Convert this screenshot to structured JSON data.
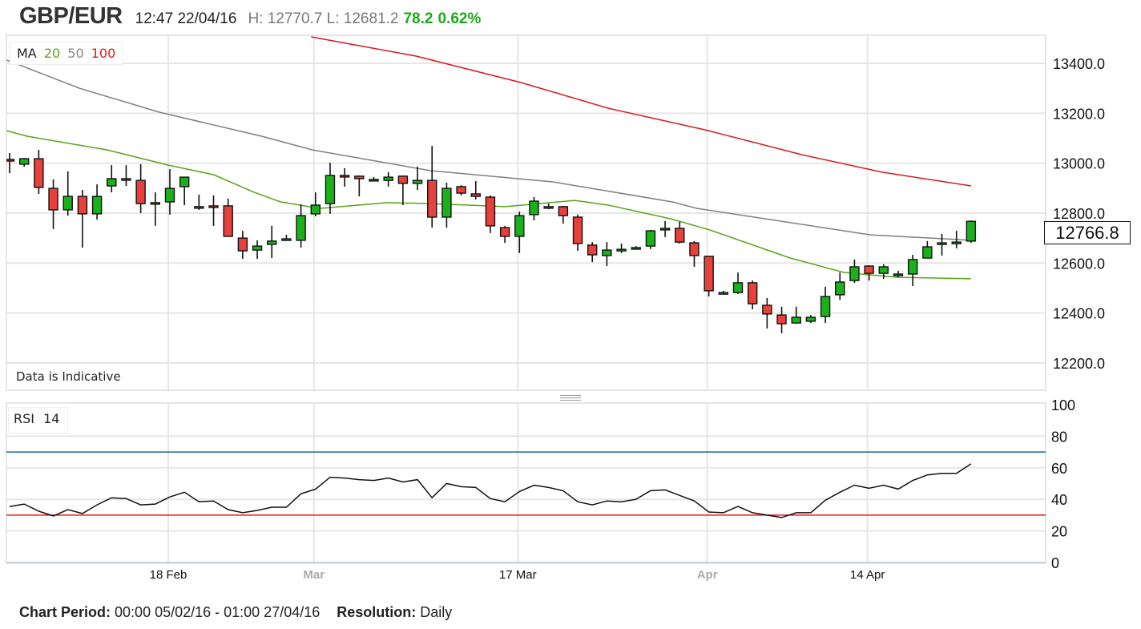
{
  "header": {
    "symbol": "GBP/EUR",
    "time": "12:47 22/04/16",
    "high_low": "H: 12770.7 L: 12681.2",
    "change": "78.2",
    "change_pct": "0.62%"
  },
  "ma_legend": {
    "label": "MA",
    "periods": [
      "20",
      "50",
      "100"
    ]
  },
  "rsi_legend": {
    "label": "RSI",
    "period": "14"
  },
  "indicative_note": "Data is Indicative",
  "current_price": "12766.8",
  "footer": {
    "period_label": "Chart Period:",
    "period_value": "00:00 05/02/16 - 01:00 27/04/16",
    "resolution_label": "Resolution:",
    "resolution_value": "Daily"
  },
  "colors": {
    "up": "#19b21a",
    "down": "#e8403a",
    "ma20": "#5aa31a",
    "ma50": "#7f7f7f",
    "ma100": "#d9191c",
    "rsi70": "#1a6a9a",
    "rsi30": "#e21a1a",
    "change": "#1aaa1a"
  },
  "chart_data": [
    {
      "type": "candlestick",
      "title": "GBP/EUR",
      "y_ticks": [
        "13400.0",
        "13200.0",
        "13000.0",
        "12800.0",
        "12600.0",
        "12400.0",
        "12200.0"
      ],
      "y_tick_values": [
        13400,
        13200,
        13000,
        12800,
        12600,
        12400,
        12200
      ],
      "ylim": [
        12090,
        13512
      ],
      "x_ticks": [
        {
          "label": "18 Feb",
          "index": 11,
          "month": false
        },
        {
          "label": "Mar",
          "index": 21,
          "month": true
        },
        {
          "label": "17 Mar",
          "index": 35,
          "month": false
        },
        {
          "label": "Apr",
          "index": 48,
          "month": true
        },
        {
          "label": "14 Apr",
          "index": 59,
          "month": false
        }
      ],
      "ohlc": [
        [
          13015,
          13041,
          12960,
          13009
        ],
        [
          12996,
          13021,
          12986,
          13018
        ],
        [
          13018,
          13053,
          12877,
          12903
        ],
        [
          12899,
          12935,
          12736,
          12813
        ],
        [
          12813,
          12967,
          12790,
          12867
        ],
        [
          12867,
          12893,
          12662,
          12797
        ],
        [
          12797,
          12915,
          12774,
          12867
        ],
        [
          12909,
          12992,
          12883,
          12938
        ],
        [
          12935,
          12992,
          12909,
          12938
        ],
        [
          12931,
          12996,
          12800,
          12838
        ],
        [
          12842,
          12883,
          12749,
          12842
        ],
        [
          12845,
          12976,
          12794,
          12899
        ],
        [
          12906,
          12944,
          12832,
          12944
        ],
        [
          12826,
          12874,
          12813,
          12826
        ],
        [
          12829,
          12871,
          12749,
          12826
        ],
        [
          12829,
          12858,
          12707,
          12707
        ],
        [
          12700,
          12729,
          12617,
          12649
        ],
        [
          12652,
          12691,
          12617,
          12668
        ],
        [
          12675,
          12749,
          12620,
          12688
        ],
        [
          12694,
          12713,
          12691,
          12697
        ],
        [
          12691,
          12835,
          12662,
          12790
        ],
        [
          12797,
          12883,
          12787,
          12832
        ],
        [
          12838,
          13002,
          12797,
          12951
        ],
        [
          12951,
          12980,
          12906,
          12948
        ],
        [
          12948,
          12951,
          12867,
          12938
        ],
        [
          12935,
          12944,
          12928,
          12935
        ],
        [
          12931,
          12964,
          12906,
          12944
        ],
        [
          12948,
          12951,
          12832,
          12919
        ],
        [
          12919,
          12986,
          12893,
          12931
        ],
        [
          12931,
          13069,
          12742,
          12784
        ],
        [
          12784,
          12922,
          12742,
          12899
        ],
        [
          12906,
          12912,
          12871,
          12880
        ],
        [
          12877,
          12928,
          12855,
          12867
        ],
        [
          12864,
          12871,
          12720,
          12749
        ],
        [
          12742,
          12749,
          12681,
          12707
        ],
        [
          12707,
          12806,
          12640,
          12790
        ],
        [
          12794,
          12864,
          12771,
          12848
        ],
        [
          12826,
          12838,
          12816,
          12826
        ],
        [
          12826,
          12829,
          12758,
          12790
        ],
        [
          12784,
          12794,
          12649,
          12678
        ],
        [
          12672,
          12684,
          12604,
          12633
        ],
        [
          12630,
          12684,
          12588,
          12652
        ],
        [
          12652,
          12678,
          12640,
          12655
        ],
        [
          12662,
          12668,
          12656,
          12662
        ],
        [
          12668,
          12733,
          12656,
          12729
        ],
        [
          12739,
          12768,
          12704,
          12739
        ],
        [
          12739,
          12765,
          12678,
          12684
        ],
        [
          12681,
          12688,
          12585,
          12630
        ],
        [
          12627,
          12627,
          12466,
          12489
        ],
        [
          12482,
          12489,
          12473,
          12482
        ],
        [
          12482,
          12562,
          12476,
          12521
        ],
        [
          12521,
          12530,
          12415,
          12437
        ],
        [
          12431,
          12460,
          12338,
          12396
        ],
        [
          12392,
          12425,
          12319,
          12357
        ],
        [
          12360,
          12425,
          12357,
          12383
        ],
        [
          12367,
          12392,
          12360,
          12383
        ],
        [
          12386,
          12505,
          12360,
          12466
        ],
        [
          12473,
          12562,
          12453,
          12524
        ],
        [
          12530,
          12614,
          12521,
          12585
        ],
        [
          12588,
          12591,
          12530,
          12559
        ],
        [
          12559,
          12595,
          12537,
          12585
        ],
        [
          12556,
          12569,
          12543,
          12556
        ],
        [
          12556,
          12633,
          12508,
          12614
        ],
        [
          12620,
          12688,
          12620,
          12665
        ],
        [
          12675,
          12717,
          12630,
          12681
        ],
        [
          12684,
          12729,
          12659,
          12684
        ],
        [
          12688,
          12771,
          12681,
          12767
        ]
      ],
      "series": [
        {
          "name": "MA 20",
          "points": [
            [
              -0.2,
              13130
            ],
            [
              1.2,
              13108
            ],
            [
              6.7,
              13053
            ],
            [
              10.9,
              12992
            ],
            [
              14,
              12954
            ],
            [
              16.8,
              12883
            ],
            [
              18.6,
              12845
            ],
            [
              21.3,
              12819
            ],
            [
              25.9,
              12842
            ],
            [
              29,
              12838
            ],
            [
              34,
              12826
            ],
            [
              38.8,
              12851
            ],
            [
              41.1,
              12832
            ],
            [
              45.4,
              12777
            ],
            [
              48.1,
              12732
            ],
            [
              53.6,
              12620
            ],
            [
              57.3,
              12562
            ],
            [
              61,
              12543
            ],
            [
              66,
              12537
            ]
          ]
        },
        {
          "name": "MA 50",
          "points": [
            [
              -0.2,
              13413
            ],
            [
              4.8,
              13300
            ],
            [
              10.3,
              13204
            ],
            [
              17.3,
              13108
            ],
            [
              20.8,
              13053
            ],
            [
              28.9,
              12970
            ],
            [
              37.3,
              12925
            ],
            [
              45.5,
              12845
            ],
            [
              47.2,
              12819
            ],
            [
              59.1,
              12713
            ],
            [
              66,
              12691
            ]
          ]
        },
        {
          "name": "MA 100",
          "points": [
            [
              20.7,
              13506
            ],
            [
              27.9,
              13429
            ],
            [
              35.1,
              13323
            ],
            [
              41.1,
              13220
            ],
            [
              47.7,
              13134
            ],
            [
              54.4,
              13034
            ],
            [
              59.9,
              12964
            ],
            [
              66,
              12909
            ]
          ]
        }
      ]
    },
    {
      "type": "line",
      "title": "RSI 14",
      "ylim": [
        0,
        100
      ],
      "y_ticks": [
        "100",
        "80",
        "60",
        "40",
        "20",
        "0"
      ],
      "y_tick_values": [
        100,
        80,
        60,
        40,
        20,
        0
      ],
      "reference_lines": [
        70,
        30
      ],
      "values": [
        35.5,
        37,
        32.5,
        29.5,
        33.5,
        31,
        36.5,
        41,
        40.5,
        36.5,
        37,
        41.5,
        44.5,
        38.5,
        39,
        33.5,
        31.5,
        33,
        35,
        35,
        43.5,
        46.5,
        54,
        53.5,
        52.5,
        52,
        53.5,
        51,
        52.5,
        41,
        50,
        48,
        47.5,
        40.5,
        38.5,
        45,
        49,
        47.5,
        45.5,
        38.5,
        36.5,
        39,
        38.5,
        40,
        45.5,
        46,
        42.5,
        39,
        32,
        31.5,
        35.5,
        31.5,
        30,
        28.5,
        31.5,
        31.5,
        39.5,
        44.5,
        49,
        47,
        49,
        46.5,
        52,
        55.5,
        56.5,
        56.5,
        62.5
      ]
    }
  ]
}
